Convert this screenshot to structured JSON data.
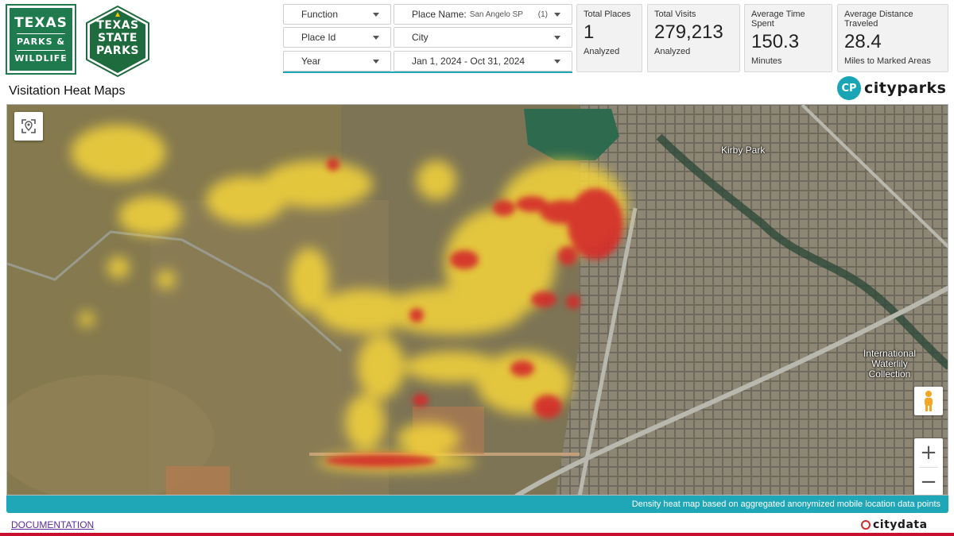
{
  "branding": {
    "tpw_line1": "TEXAS",
    "tpw_line2": "PARKS &",
    "tpw_line3": "WILDLIFE",
    "tsp_line1": "TEXAS",
    "tsp_line2": "STATE",
    "tsp_line3": "PARKS",
    "cityparks_badge": "CP",
    "cityparks_name": "cityparks",
    "citydata_name": "citydata"
  },
  "filters": {
    "function_label": "Function",
    "place_name_label": "Place Name:",
    "place_name_value": "San Angelo SP",
    "place_name_count": "(1)",
    "place_id_label": "Place Id",
    "city_label": "City",
    "year_label": "Year",
    "date_range": "Jan 1, 2024 - Oct 31, 2024"
  },
  "cards": [
    {
      "title": "Total Places",
      "value": "1",
      "sub": "Analyzed"
    },
    {
      "title": "Total Visits",
      "value": "279,213",
      "sub": "Analyzed"
    },
    {
      "title": "Average Time Spent",
      "value": "150.3",
      "sub": "Minutes"
    },
    {
      "title": "Average Distance Traveled",
      "value": "28.4",
      "sub": "Miles to Marked Areas"
    }
  ],
  "page_title": "Visitation Heat Maps",
  "map": {
    "labels": {
      "kirby_park": "Kirby Park",
      "intl_waterlily": "International Waterlily Collection"
    },
    "caption": "Density heat map based on aggregated anonymized mobile location data points",
    "zoom_in": "+",
    "zoom_out": "−",
    "colors": {
      "heat_high": "#d42a2a",
      "heat_low": "#f5d43a",
      "accent": "#1fa7b8"
    }
  },
  "footer": {
    "documentation": "DOCUMENTATION"
  }
}
